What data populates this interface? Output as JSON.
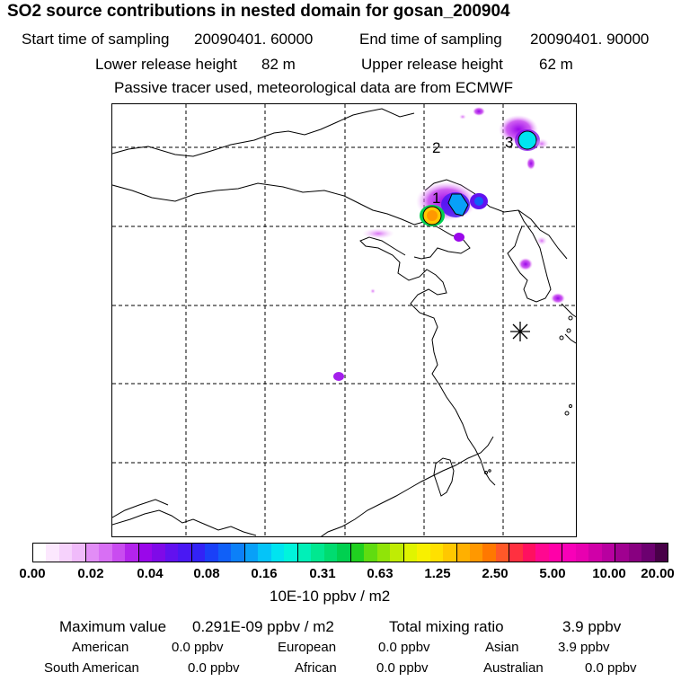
{
  "header": {
    "title": "SO2 source contributions in nested domain for gosan_200904",
    "start_label": "Start time of sampling",
    "start_value": "20090401. 60000",
    "end_label": "End time of sampling",
    "end_value": "20090401. 90000",
    "lower_label": "Lower release height",
    "lower_value": "82 m",
    "upper_label": "Upper release height",
    "upper_value": "62 m",
    "note": "Passive tracer used, meteorological data are from ECMWF"
  },
  "map": {
    "region_labels": [
      "1",
      "2",
      "3"
    ],
    "receptor_marker": "asterisk"
  },
  "colorbar": {
    "tick_labels": [
      "0.00",
      "0.02",
      "0.04",
      "0.08",
      "0.16",
      "0.31",
      "0.63",
      "1.25",
      "2.50",
      "5.00",
      "10.00",
      "20.00"
    ],
    "colors": [
      "#ffffff",
      "#fce8fe",
      "#f6d2fc",
      "#f0bbfa",
      "#e28df6",
      "#d86ff4",
      "#c94cf0",
      "#b324ec",
      "#9a07ea",
      "#7f0ae8",
      "#6211ef",
      "#4a18f3",
      "#3322f6",
      "#1a40f8",
      "#1060f8",
      "#0c80f8",
      "#08a0f8",
      "#05c4f8",
      "#00e4f0",
      "#00f4dc",
      "#00f0b8",
      "#00e890",
      "#00dc70",
      "#00d050",
      "#20d020",
      "#60dc10",
      "#90e408",
      "#c0ec04",
      "#e0f400",
      "#f8f000",
      "#ffe000",
      "#ffc800",
      "#ffb000",
      "#ff9800",
      "#ff7800",
      "#ff5828",
      "#ff3040",
      "#ff1060",
      "#ff0890",
      "#ff00a8",
      "#f800b8",
      "#e800b0",
      "#d000a8",
      "#b800a0",
      "#a00090",
      "#880080",
      "#6c0070",
      "#480048"
    ],
    "units": "10E-10 ppbv / m2"
  },
  "stats": {
    "max_label": "Maximum value",
    "max_value": "0.291E-09 ppbv / m2",
    "total_label": "Total mixing ratio",
    "total_value": "3.9 ppbv",
    "regions": [
      {
        "name": "American",
        "value": "0.0 ppbv"
      },
      {
        "name": "European",
        "value": "0.0 ppbv"
      },
      {
        "name": "Asian",
        "value": "3.9 ppbv"
      },
      {
        "name": "South American",
        "value": "0.0 ppbv"
      },
      {
        "name": "African",
        "value": "0.0 ppbv"
      },
      {
        "name": "Australian",
        "value": "0.0 ppbv"
      }
    ]
  }
}
